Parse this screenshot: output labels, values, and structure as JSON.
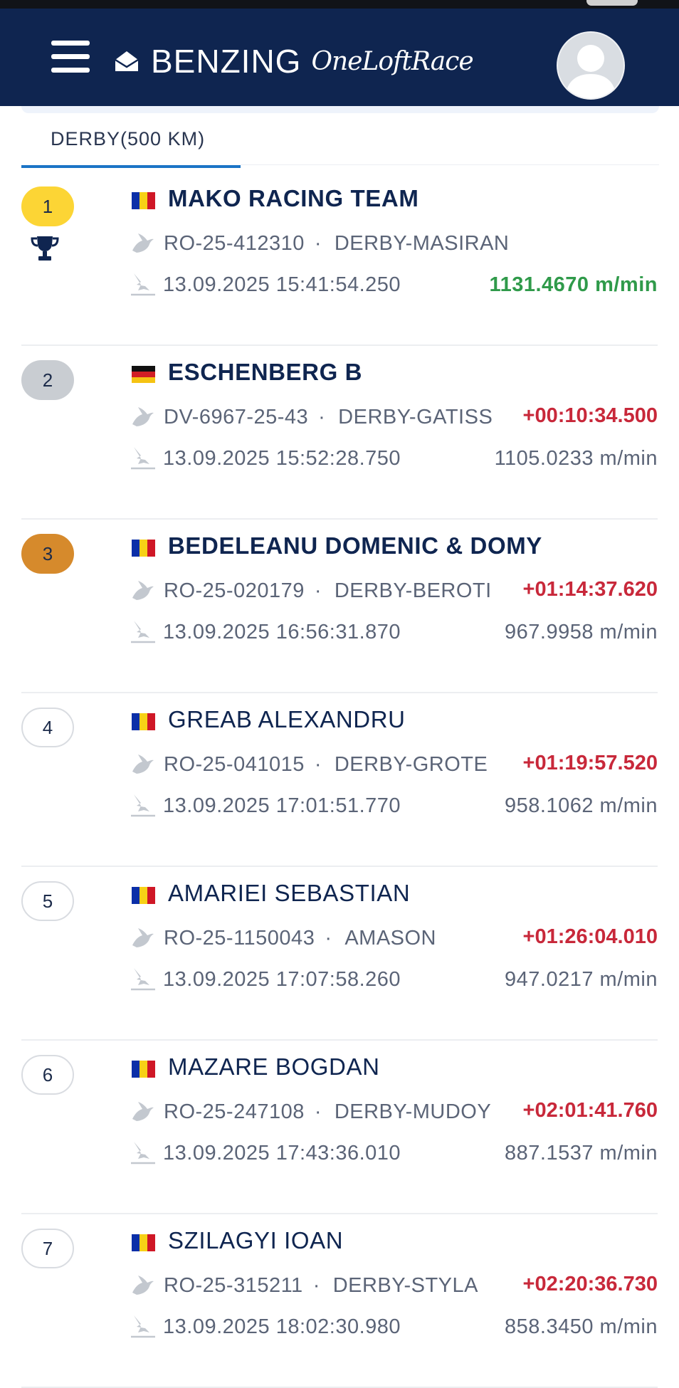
{
  "header": {
    "brand": "BENZING",
    "brand_sub": "OneLoftRace",
    "menu_icon": "hamburger-menu-icon",
    "logo_icon": "benzing-logo-icon",
    "avatar_icon": "user-avatar-icon"
  },
  "tab": {
    "label": "DERBY(500 KM)"
  },
  "colors": {
    "header_bg": "#0f2550",
    "gold": "#fcd535",
    "silver": "#c9cdd2",
    "bronze": "#d68a2c",
    "diff_red": "#c8283a",
    "speed_green": "#2f9a4a",
    "tab_underline": "#1b74c6"
  },
  "results": [
    {
      "rank": "1",
      "flag": "ro",
      "name": "MAKO RACING TEAM",
      "ring": "RO-25-412310",
      "loft": "DERBY-MASIRAN",
      "diff": "",
      "time": "13.09.2025 15:41:54.250",
      "speed": "1131.4670 m/min",
      "winner": true
    },
    {
      "rank": "2",
      "flag": "de",
      "name": "ESCHENBERG B",
      "ring": "DV-6967-25-43",
      "loft": "DERBY-GATISS",
      "diff": "+00:10:34.500",
      "time": "13.09.2025 15:52:28.750",
      "speed": "1105.0233 m/min"
    },
    {
      "rank": "3",
      "flag": "ro",
      "name": "BEDELEANU DOMENIC & DOMY",
      "ring": "RO-25-020179",
      "loft": "DERBY-BEROTI",
      "diff": "+01:14:37.620",
      "time": "13.09.2025 16:56:31.870",
      "speed": "967.9958 m/min"
    },
    {
      "rank": "4",
      "flag": "ro",
      "name": "GREAB ALEXANDRU",
      "ring": "RO-25-041015",
      "loft": "DERBY-GROTE",
      "diff": "+01:19:57.520",
      "time": "13.09.2025 17:01:51.770",
      "speed": "958.1062 m/min"
    },
    {
      "rank": "5",
      "flag": "ro",
      "name": "AMARIEI SEBASTIAN",
      "ring": "RO-25-1150043",
      "loft": "AMASON",
      "diff": "+01:26:04.010",
      "time": "13.09.2025 17:07:58.260",
      "speed": "947.0217 m/min"
    },
    {
      "rank": "6",
      "flag": "ro",
      "name": "MAZARE BOGDAN",
      "ring": "RO-25-247108",
      "loft": "DERBY-MUDOY",
      "diff": "+02:01:41.760",
      "time": "13.09.2025 17:43:36.010",
      "speed": "887.1537 m/min"
    },
    {
      "rank": "7",
      "flag": "ro",
      "name": "SZILAGYI IOAN",
      "ring": "RO-25-315211",
      "loft": "DERBY-STYLA",
      "diff": "+02:20:36.730",
      "time": "13.09.2025 18:02:30.980",
      "speed": "858.3450 m/min"
    }
  ]
}
